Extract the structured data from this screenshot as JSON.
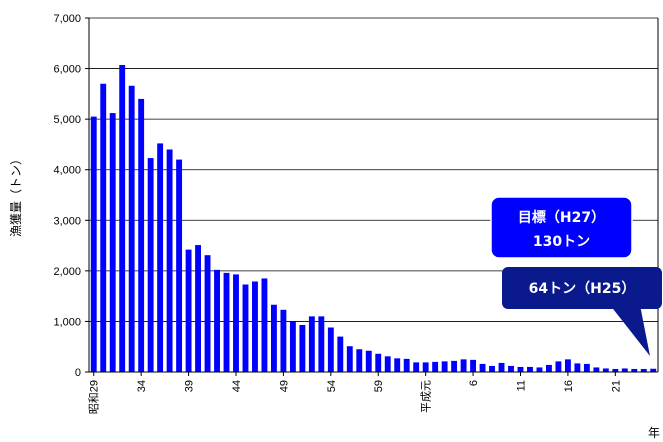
{
  "chart_data": {
    "type": "bar",
    "ylabel": "漁獲量（トン）",
    "xlabel": "年",
    "ylim": [
      0,
      7000
    ],
    "y_ticks": [
      "0",
      "1,000",
      "2,000",
      "3,000",
      "4,000",
      "5,000",
      "6,000",
      "7,000"
    ],
    "x_tick_labels": [
      {
        "index": 0,
        "label": "昭和29"
      },
      {
        "index": 5,
        "label": "34"
      },
      {
        "index": 10,
        "label": "39"
      },
      {
        "index": 15,
        "label": "44"
      },
      {
        "index": 20,
        "label": "49"
      },
      {
        "index": 25,
        "label": "54"
      },
      {
        "index": 30,
        "label": "59"
      },
      {
        "index": 35,
        "label": "平成元"
      },
      {
        "index": 40,
        "label": "6"
      },
      {
        "index": 45,
        "label": "11"
      },
      {
        "index": 50,
        "label": "16"
      },
      {
        "index": 55,
        "label": "21"
      }
    ],
    "values": [
      5050,
      5700,
      5120,
      6070,
      5660,
      5400,
      4230,
      4520,
      4400,
      4200,
      2420,
      2510,
      2310,
      2020,
      1960,
      1930,
      1730,
      1790,
      1850,
      1330,
      1230,
      1000,
      930,
      1100,
      1100,
      880,
      700,
      510,
      450,
      420,
      360,
      310,
      270,
      260,
      190,
      190,
      200,
      210,
      220,
      250,
      240,
      160,
      120,
      180,
      120,
      100,
      100,
      90,
      140,
      210,
      250,
      170,
      160,
      90,
      70,
      60,
      70,
      60,
      60,
      64
    ],
    "bar_color": "#0000ff",
    "grid": true,
    "annotations": [
      {
        "lines": [
          "目標（H27）",
          "130トン"
        ],
        "color": "#0000ff"
      },
      {
        "lines": [
          "64トン（H25）"
        ],
        "color": "#0a1a8c"
      }
    ]
  }
}
